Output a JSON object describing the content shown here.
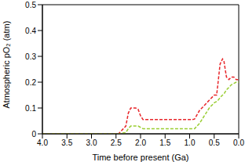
{
  "chart_data": {
    "type": "line",
    "x_label": "Time before present (Ga)",
    "y_label": "Atmospheric pO₂ (atm)",
    "x": [
      4.0,
      2.45,
      2.3,
      2.25,
      2.2,
      2.1,
      2.05,
      2.0,
      1.95,
      0.95,
      0.9,
      0.8,
      0.7,
      0.6,
      0.5,
      0.45,
      0.42,
      0.38,
      0.33,
      0.3,
      0.25,
      0.2,
      0.15,
      0.1,
      0.05,
      0.0
    ],
    "series": [
      {
        "color": "#e8262a",
        "line_style": "dashed",
        "values": [
          0,
          0,
          0.03,
          0.08,
          0.1,
          0.1,
          0.095,
          0.07,
          0.055,
          0.055,
          0.057,
          0.09,
          0.11,
          0.13,
          0.15,
          0.15,
          0.2,
          0.27,
          0.29,
          0.28,
          0.22,
          0.21,
          0.22,
          0.22,
          0.21,
          0.21
        ]
      },
      {
        "color": "#9acd32",
        "line_style": "dashed",
        "values": [
          0,
          0,
          0.005,
          0.02,
          0.03,
          0.03,
          0.03,
          0.025,
          0.02,
          0.02,
          0.02,
          0.04,
          0.07,
          0.1,
          0.12,
          0.125,
          0.13,
          0.14,
          0.15,
          0.155,
          0.17,
          0.18,
          0.19,
          0.195,
          0.2,
          0.2
        ]
      }
    ],
    "xlim": [
      4,
      0
    ],
    "xticks": [
      {
        "value": 4,
        "label": "4.0"
      },
      {
        "value": 3.5,
        "label": "3.5"
      },
      {
        "value": 3,
        "label": "3.0"
      },
      {
        "value": 2.5,
        "label": "2.5"
      },
      {
        "value": 2,
        "label": "2.0"
      },
      {
        "value": 1.5,
        "label": "1.5"
      },
      {
        "value": 1,
        "label": "1.0"
      },
      {
        "value": 0.5,
        "label": "0.5"
      },
      {
        "value": 0,
        "label": "0.0"
      }
    ],
    "ylim": [
      0,
      0.5
    ],
    "yticks": [
      0,
      0.1,
      0.2,
      0.3,
      0.4,
      0.5
    ]
  }
}
